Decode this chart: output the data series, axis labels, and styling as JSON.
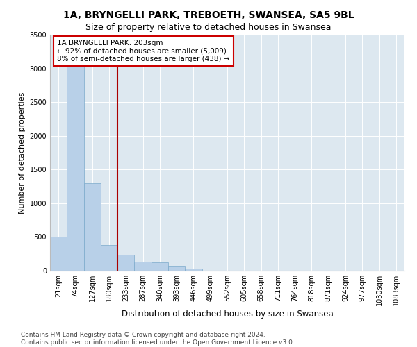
{
  "title": "1A, BRYNGELLI PARK, TREBOETH, SWANSEA, SA5 9BL",
  "subtitle": "Size of property relative to detached houses in Swansea",
  "xlabel": "Distribution of detached houses by size in Swansea",
  "ylabel": "Number of detached properties",
  "categories": [
    "21sqm",
    "74sqm",
    "127sqm",
    "180sqm",
    "233sqm",
    "287sqm",
    "340sqm",
    "393sqm",
    "446sqm",
    "499sqm",
    "552sqm",
    "605sqm",
    "658sqm",
    "711sqm",
    "764sqm",
    "818sqm",
    "871sqm",
    "924sqm",
    "977sqm",
    "1030sqm",
    "1083sqm"
  ],
  "values": [
    500,
    3300,
    1300,
    380,
    240,
    130,
    120,
    60,
    30,
    0,
    0,
    0,
    0,
    0,
    0,
    0,
    0,
    0,
    0,
    0,
    0
  ],
  "bar_color": "#b8d0e8",
  "bar_edge_color": "#7aaacb",
  "vline_color": "#aa0000",
  "annotation_text": "1A BRYNGELLI PARK: 203sqm\n← 92% of detached houses are smaller (5,009)\n8% of semi-detached houses are larger (438) →",
  "annotation_box_edge_color": "#cc0000",
  "ylim": [
    0,
    3500
  ],
  "yticks": [
    0,
    500,
    1000,
    1500,
    2000,
    2500,
    3000,
    3500
  ],
  "bg_color": "#dde8f0",
  "grid_color": "#ffffff",
  "footer": "Contains HM Land Registry data © Crown copyright and database right 2024.\nContains public sector information licensed under the Open Government Licence v3.0.",
  "title_fontsize": 10,
  "subtitle_fontsize": 9,
  "xlabel_fontsize": 8.5,
  "ylabel_fontsize": 8,
  "tick_fontsize": 7,
  "annotation_fontsize": 7.5,
  "footer_fontsize": 6.5
}
